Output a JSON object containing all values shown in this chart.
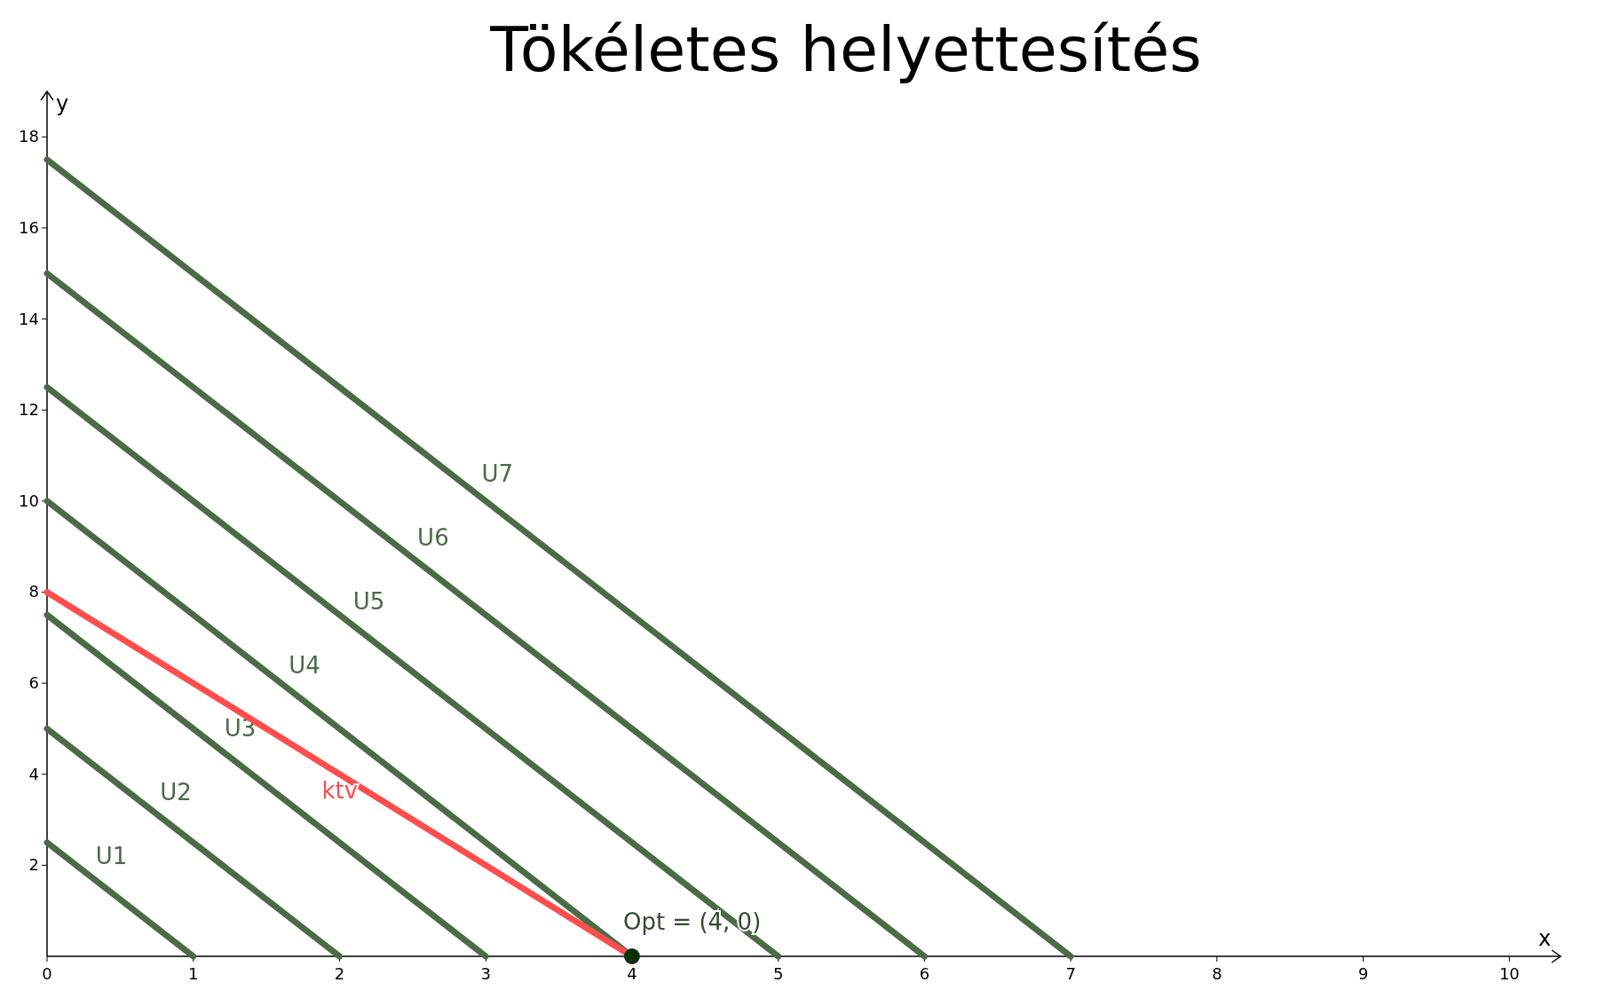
{
  "chart_data": {
    "type": "line",
    "title": "Tökéletes helyettesítés",
    "xlabel": "x",
    "ylabel": "y",
    "xlim": [
      0,
      10.35
    ],
    "ylim": [
      0,
      19
    ],
    "xticks": [
      0,
      1,
      2,
      3,
      4,
      5,
      6,
      7,
      8,
      9,
      10
    ],
    "yticks": [
      2,
      4,
      6,
      8,
      10,
      12,
      14,
      16,
      18
    ],
    "grid": false,
    "marker": "none",
    "line_style": "solid",
    "series": [
      {
        "name": "U1",
        "color": "#4a6b45",
        "x": [
          0,
          1
        ],
        "values": [
          2.5,
          0
        ]
      },
      {
        "name": "U2",
        "color": "#4a6b45",
        "x": [
          0,
          2
        ],
        "values": [
          5,
          0
        ]
      },
      {
        "name": "U3",
        "color": "#4a6b45",
        "x": [
          0,
          3
        ],
        "values": [
          7.5,
          0
        ]
      },
      {
        "name": "U4",
        "color": "#4a6b45",
        "x": [
          0,
          4
        ],
        "values": [
          10,
          0
        ]
      },
      {
        "name": "U5",
        "color": "#4a6b45",
        "x": [
          0,
          5
        ],
        "values": [
          12.5,
          0
        ]
      },
      {
        "name": "U6",
        "color": "#4a6b45",
        "x": [
          0,
          6
        ],
        "values": [
          15,
          0
        ]
      },
      {
        "name": "U7",
        "color": "#4a6b45",
        "x": [
          0,
          7
        ],
        "values": [
          17.5,
          0
        ]
      },
      {
        "name": "ktv",
        "color": "#ff4d4d",
        "x": [
          0,
          4
        ],
        "values": [
          8,
          0
        ]
      },
      {
        "type": "scatter",
        "color": "#0b2e0b",
        "x": [
          4
        ],
        "values": [
          0
        ],
        "marker": "circle"
      }
    ],
    "annotations": [
      {
        "text": "Opt = (4, 0)",
        "x": 4,
        "y": 0
      }
    ]
  }
}
